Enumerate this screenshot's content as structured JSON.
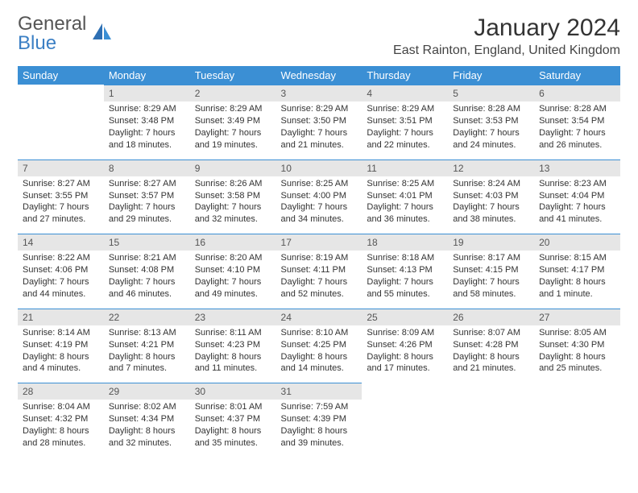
{
  "brand": {
    "name_part1": "General",
    "name_part2": "Blue"
  },
  "title": "January 2024",
  "location": "East Rainton, England, United Kingdom",
  "colors": {
    "header_bg": "#3b8fd4",
    "header_text": "#ffffff",
    "daynum_bg": "#e6e6e6",
    "row_border": "#3b8fd4",
    "text": "#333333",
    "logo_blue": "#3b7fc4"
  },
  "days_of_week": [
    "Sunday",
    "Monday",
    "Tuesday",
    "Wednesday",
    "Thursday",
    "Friday",
    "Saturday"
  ],
  "start_offset": 1,
  "days": [
    {
      "n": 1,
      "sunrise": "8:29 AM",
      "sunset": "3:48 PM",
      "daylight": "7 hours and 18 minutes."
    },
    {
      "n": 2,
      "sunrise": "8:29 AM",
      "sunset": "3:49 PM",
      "daylight": "7 hours and 19 minutes."
    },
    {
      "n": 3,
      "sunrise": "8:29 AM",
      "sunset": "3:50 PM",
      "daylight": "7 hours and 21 minutes."
    },
    {
      "n": 4,
      "sunrise": "8:29 AM",
      "sunset": "3:51 PM",
      "daylight": "7 hours and 22 minutes."
    },
    {
      "n": 5,
      "sunrise": "8:28 AM",
      "sunset": "3:53 PM",
      "daylight": "7 hours and 24 minutes."
    },
    {
      "n": 6,
      "sunrise": "8:28 AM",
      "sunset": "3:54 PM",
      "daylight": "7 hours and 26 minutes."
    },
    {
      "n": 7,
      "sunrise": "8:27 AM",
      "sunset": "3:55 PM",
      "daylight": "7 hours and 27 minutes."
    },
    {
      "n": 8,
      "sunrise": "8:27 AM",
      "sunset": "3:57 PM",
      "daylight": "7 hours and 29 minutes."
    },
    {
      "n": 9,
      "sunrise": "8:26 AM",
      "sunset": "3:58 PM",
      "daylight": "7 hours and 32 minutes."
    },
    {
      "n": 10,
      "sunrise": "8:25 AM",
      "sunset": "4:00 PM",
      "daylight": "7 hours and 34 minutes."
    },
    {
      "n": 11,
      "sunrise": "8:25 AM",
      "sunset": "4:01 PM",
      "daylight": "7 hours and 36 minutes."
    },
    {
      "n": 12,
      "sunrise": "8:24 AM",
      "sunset": "4:03 PM",
      "daylight": "7 hours and 38 minutes."
    },
    {
      "n": 13,
      "sunrise": "8:23 AM",
      "sunset": "4:04 PM",
      "daylight": "7 hours and 41 minutes."
    },
    {
      "n": 14,
      "sunrise": "8:22 AM",
      "sunset": "4:06 PM",
      "daylight": "7 hours and 44 minutes."
    },
    {
      "n": 15,
      "sunrise": "8:21 AM",
      "sunset": "4:08 PM",
      "daylight": "7 hours and 46 minutes."
    },
    {
      "n": 16,
      "sunrise": "8:20 AM",
      "sunset": "4:10 PM",
      "daylight": "7 hours and 49 minutes."
    },
    {
      "n": 17,
      "sunrise": "8:19 AM",
      "sunset": "4:11 PM",
      "daylight": "7 hours and 52 minutes."
    },
    {
      "n": 18,
      "sunrise": "8:18 AM",
      "sunset": "4:13 PM",
      "daylight": "7 hours and 55 minutes."
    },
    {
      "n": 19,
      "sunrise": "8:17 AM",
      "sunset": "4:15 PM",
      "daylight": "7 hours and 58 minutes."
    },
    {
      "n": 20,
      "sunrise": "8:15 AM",
      "sunset": "4:17 PM",
      "daylight": "8 hours and 1 minute."
    },
    {
      "n": 21,
      "sunrise": "8:14 AM",
      "sunset": "4:19 PM",
      "daylight": "8 hours and 4 minutes."
    },
    {
      "n": 22,
      "sunrise": "8:13 AM",
      "sunset": "4:21 PM",
      "daylight": "8 hours and 7 minutes."
    },
    {
      "n": 23,
      "sunrise": "8:11 AM",
      "sunset": "4:23 PM",
      "daylight": "8 hours and 11 minutes."
    },
    {
      "n": 24,
      "sunrise": "8:10 AM",
      "sunset": "4:25 PM",
      "daylight": "8 hours and 14 minutes."
    },
    {
      "n": 25,
      "sunrise": "8:09 AM",
      "sunset": "4:26 PM",
      "daylight": "8 hours and 17 minutes."
    },
    {
      "n": 26,
      "sunrise": "8:07 AM",
      "sunset": "4:28 PM",
      "daylight": "8 hours and 21 minutes."
    },
    {
      "n": 27,
      "sunrise": "8:05 AM",
      "sunset": "4:30 PM",
      "daylight": "8 hours and 25 minutes."
    },
    {
      "n": 28,
      "sunrise": "8:04 AM",
      "sunset": "4:32 PM",
      "daylight": "8 hours and 28 minutes."
    },
    {
      "n": 29,
      "sunrise": "8:02 AM",
      "sunset": "4:34 PM",
      "daylight": "8 hours and 32 minutes."
    },
    {
      "n": 30,
      "sunrise": "8:01 AM",
      "sunset": "4:37 PM",
      "daylight": "8 hours and 35 minutes."
    },
    {
      "n": 31,
      "sunrise": "7:59 AM",
      "sunset": "4:39 PM",
      "daylight": "8 hours and 39 minutes."
    }
  ],
  "labels": {
    "sunrise": "Sunrise:",
    "sunset": "Sunset:",
    "daylight": "Daylight:"
  }
}
